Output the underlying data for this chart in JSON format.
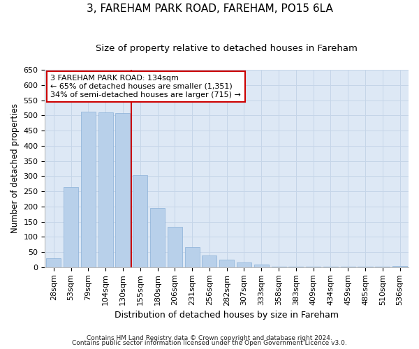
{
  "title": "3, FAREHAM PARK ROAD, FAREHAM, PO15 6LA",
  "subtitle": "Size of property relative to detached houses in Fareham",
  "xlabel": "Distribution of detached houses by size in Fareham",
  "ylabel": "Number of detached properties",
  "categories": [
    "28sqm",
    "53sqm",
    "79sqm",
    "104sqm",
    "130sqm",
    "155sqm",
    "180sqm",
    "206sqm",
    "231sqm",
    "256sqm",
    "282sqm",
    "307sqm",
    "333sqm",
    "358sqm",
    "383sqm",
    "409sqm",
    "434sqm",
    "459sqm",
    "485sqm",
    "510sqm",
    "536sqm"
  ],
  "values": [
    30,
    263,
    512,
    511,
    509,
    302,
    196,
    132,
    65,
    38,
    24,
    15,
    9,
    2,
    2,
    2,
    2,
    1,
    1,
    1,
    5
  ],
  "bar_color": "#b8d0ea",
  "bar_edge_color": "#8ab0d8",
  "property_line_x": 4.5,
  "vline_color": "#cc0000",
  "annotation_title": "3 FAREHAM PARK ROAD: 134sqm",
  "annotation_line1": "← 65% of detached houses are smaller (1,351)",
  "annotation_line2": "34% of semi-detached houses are larger (715) →",
  "annotation_box_facecolor": "#ffffff",
  "annotation_box_edgecolor": "#cc0000",
  "ylim": [
    0,
    650
  ],
  "yticks": [
    0,
    50,
    100,
    150,
    200,
    250,
    300,
    350,
    400,
    450,
    500,
    550,
    600,
    650
  ],
  "grid_color": "#c5d5e8",
  "bg_color": "#dde8f5",
  "title_fontsize": 11,
  "subtitle_fontsize": 9.5,
  "ylabel_fontsize": 8.5,
  "xlabel_fontsize": 9,
  "tick_fontsize": 8,
  "footer1": "Contains HM Land Registry data © Crown copyright and database right 2024.",
  "footer2": "Contains public sector information licensed under the Open Government Licence v3.0."
}
